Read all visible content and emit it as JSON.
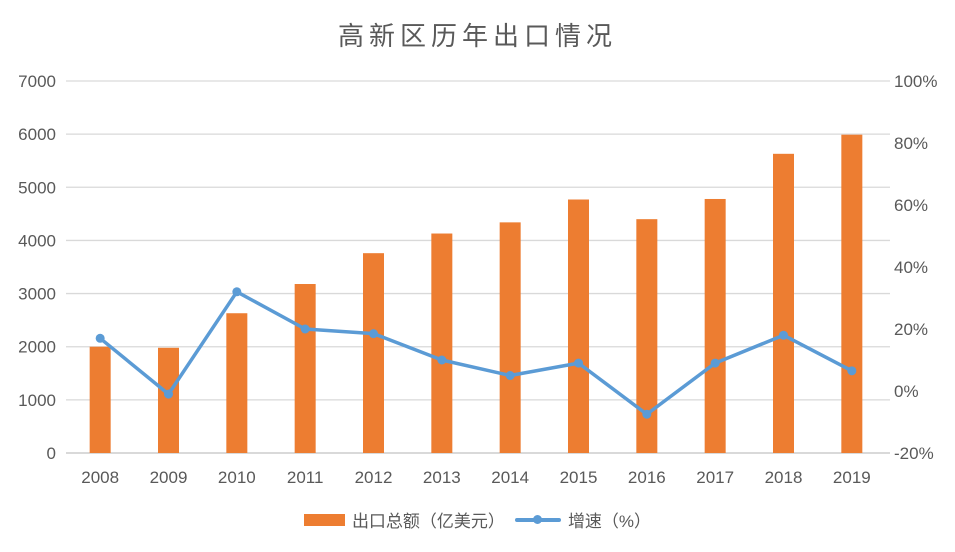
{
  "chart_data": {
    "type": "bar+line",
    "title": "高新区历年出口情况",
    "categories": [
      "2008",
      "2009",
      "2010",
      "2011",
      "2012",
      "2013",
      "2014",
      "2015",
      "2016",
      "2017",
      "2018",
      "2019"
    ],
    "series": [
      {
        "name": "出口总额（亿美元）",
        "type": "bar",
        "axis": "left",
        "color": "#ED7D31",
        "values": [
          2000,
          1980,
          2630,
          3180,
          3760,
          4130,
          4340,
          4770,
          4400,
          4780,
          5630,
          5990
        ]
      },
      {
        "name": "增速（%）",
        "type": "line",
        "axis": "right",
        "color": "#5B9BD5",
        "values": [
          17,
          -1,
          32,
          20,
          18.5,
          10,
          5,
          9,
          -7.5,
          9,
          18,
          6.5
        ]
      }
    ],
    "left_axis": {
      "min": 0,
      "max": 7000,
      "ticks": [
        0,
        1000,
        2000,
        3000,
        4000,
        5000,
        6000,
        7000
      ],
      "tick_labels": [
        "0",
        "1000",
        "2000",
        "3000",
        "4000",
        "5000",
        "6000",
        "7000"
      ]
    },
    "right_axis": {
      "min": -20,
      "max": 100,
      "ticks": [
        -20,
        0,
        20,
        40,
        60,
        80,
        100
      ],
      "tick_labels": [
        "-20%",
        "0%",
        "20%",
        "40%",
        "60%",
        "80%",
        "100%"
      ]
    },
    "grid": true,
    "legend_position": "bottom",
    "colors": {
      "gridline": "#D9D9D9",
      "axis_line": "#D9D9D9",
      "text": "#595959",
      "background": "#FFFFFF"
    }
  }
}
